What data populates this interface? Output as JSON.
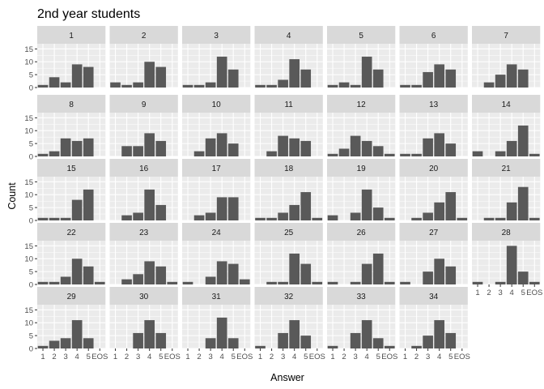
{
  "chart_data": {
    "type": "bar",
    "title": "2nd year students",
    "xlabel": "Answer",
    "ylabel": "Count",
    "categories": [
      "1",
      "2",
      "3",
      "4",
      "5",
      "EOS"
    ],
    "ylim": [
      0,
      17
    ],
    "yticks": [
      0,
      5,
      10,
      15
    ],
    "grid": true,
    "facet_columns": 7,
    "colors": {
      "bar": "#595959",
      "panel_background": "#ebebeb",
      "grid": "#ffffff",
      "strip_background": "#d9d9d9"
    },
    "facets": [
      {
        "label": "1",
        "values": [
          1,
          4,
          2,
          9,
          8,
          0
        ]
      },
      {
        "label": "2",
        "values": [
          2,
          1,
          2,
          10,
          8,
          0
        ]
      },
      {
        "label": "3",
        "values": [
          1,
          1,
          2,
          12,
          7,
          0
        ]
      },
      {
        "label": "4",
        "values": [
          1,
          1,
          3,
          11,
          7,
          0
        ]
      },
      {
        "label": "5",
        "values": [
          1,
          2,
          1,
          12,
          7,
          0
        ]
      },
      {
        "label": "6",
        "values": [
          1,
          1,
          6,
          9,
          7,
          0
        ]
      },
      {
        "label": "7",
        "values": [
          0,
          2,
          5,
          9,
          7,
          0
        ]
      },
      {
        "label": "8",
        "values": [
          1,
          2,
          7,
          6,
          7,
          0
        ]
      },
      {
        "label": "9",
        "values": [
          0,
          4,
          4,
          9,
          6,
          0
        ]
      },
      {
        "label": "10",
        "values": [
          0,
          2,
          7,
          9,
          5,
          0
        ]
      },
      {
        "label": "11",
        "values": [
          0,
          2,
          8,
          7,
          6,
          0
        ]
      },
      {
        "label": "12",
        "values": [
          1,
          3,
          8,
          6,
          4,
          1
        ]
      },
      {
        "label": "13",
        "values": [
          1,
          1,
          7,
          9,
          5,
          0
        ]
      },
      {
        "label": "14",
        "values": [
          2,
          0,
          2,
          6,
          12,
          1
        ]
      },
      {
        "label": "15",
        "values": [
          1,
          1,
          1,
          8,
          12,
          0
        ]
      },
      {
        "label": "16",
        "values": [
          0,
          2,
          3,
          12,
          6,
          0
        ]
      },
      {
        "label": "17",
        "values": [
          0,
          2,
          3,
          9,
          9,
          0
        ]
      },
      {
        "label": "18",
        "values": [
          1,
          1,
          3,
          6,
          11,
          1
        ]
      },
      {
        "label": "19",
        "values": [
          2,
          0,
          3,
          12,
          5,
          1
        ]
      },
      {
        "label": "20",
        "values": [
          0,
          1,
          3,
          7,
          11,
          1
        ]
      },
      {
        "label": "21",
        "values": [
          0,
          1,
          1,
          7,
          13,
          1
        ]
      },
      {
        "label": "22",
        "values": [
          1,
          1,
          3,
          10,
          7,
          1
        ]
      },
      {
        "label": "23",
        "values": [
          0,
          2,
          4,
          9,
          7,
          1
        ]
      },
      {
        "label": "24",
        "values": [
          1,
          0,
          3,
          9,
          8,
          2
        ]
      },
      {
        "label": "25",
        "values": [
          0,
          1,
          1,
          12,
          8,
          1
        ]
      },
      {
        "label": "26",
        "values": [
          1,
          0,
          1,
          8,
          12,
          1
        ]
      },
      {
        "label": "27",
        "values": [
          1,
          0,
          5,
          10,
          7,
          0
        ]
      },
      {
        "label": "28",
        "values": [
          1,
          0,
          1,
          15,
          5,
          1
        ]
      },
      {
        "label": "29",
        "values": [
          1,
          3,
          4,
          11,
          4,
          0
        ]
      },
      {
        "label": "30",
        "values": [
          0,
          0,
          6,
          11,
          6,
          0
        ]
      },
      {
        "label": "31",
        "values": [
          0,
          0,
          4,
          12,
          4,
          0
        ]
      },
      {
        "label": "32",
        "values": [
          1,
          0,
          6,
          11,
          5,
          0
        ]
      },
      {
        "label": "33",
        "values": [
          1,
          0,
          6,
          11,
          4,
          1
        ]
      },
      {
        "label": "34",
        "values": [
          0,
          1,
          5,
          11,
          6,
          0
        ]
      }
    ]
  }
}
